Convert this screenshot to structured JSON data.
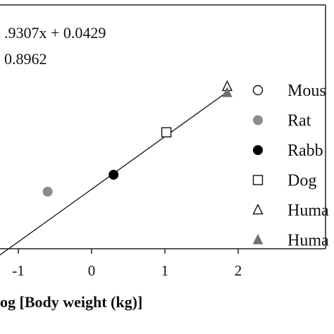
{
  "chart_data": {
    "type": "scatter",
    "xlabel": "og [Body weight (kg)]",
    "ylabel": "",
    "xlim": [
      -1.25,
      2.1
    ],
    "ylim": [
      -1.7,
      2.05
    ],
    "x_ticks": [
      {
        "value": -1,
        "label": "-1"
      },
      {
        "value": 0,
        "label": "0"
      },
      {
        "value": 1,
        "label": "1"
      },
      {
        "value": 2,
        "label": "2"
      }
    ],
    "annotations": [
      {
        "text": ".9307x + 0.0429"
      },
      {
        "text": " 0.8962"
      }
    ],
    "fit_line": {
      "slope": 0.9307,
      "intercept": 0.0429,
      "x_range": [
        -1.3,
        1.85
      ]
    },
    "series": [
      {
        "name": "Mous",
        "marker": "circle-open",
        "color": "#111111",
        "points": []
      },
      {
        "name": "Rat",
        "marker": "circle-filled",
        "color": "#8c8c8c",
        "points": [
          {
            "x": -0.6,
            "y": 0.0
          }
        ]
      },
      {
        "name": "Rabb",
        "marker": "circle-filled",
        "color": "#000000",
        "points": [
          {
            "x": 0.3,
            "y": 0.3
          }
        ]
      },
      {
        "name": "Dog",
        "marker": "square-open",
        "color": "#111111",
        "points": [
          {
            "x": 1.02,
            "y": 1.05
          }
        ]
      },
      {
        "name": "Huma",
        "marker": "triangle-open",
        "color": "#111111",
        "points": [
          {
            "x": 1.85,
            "y": 1.86
          }
        ]
      },
      {
        "name": "Huma",
        "marker": "triangle-filled",
        "color": "#707070",
        "points": [
          {
            "x": 1.85,
            "y": 1.75
          }
        ]
      }
    ],
    "legend_position": "right",
    "grid": false
  }
}
